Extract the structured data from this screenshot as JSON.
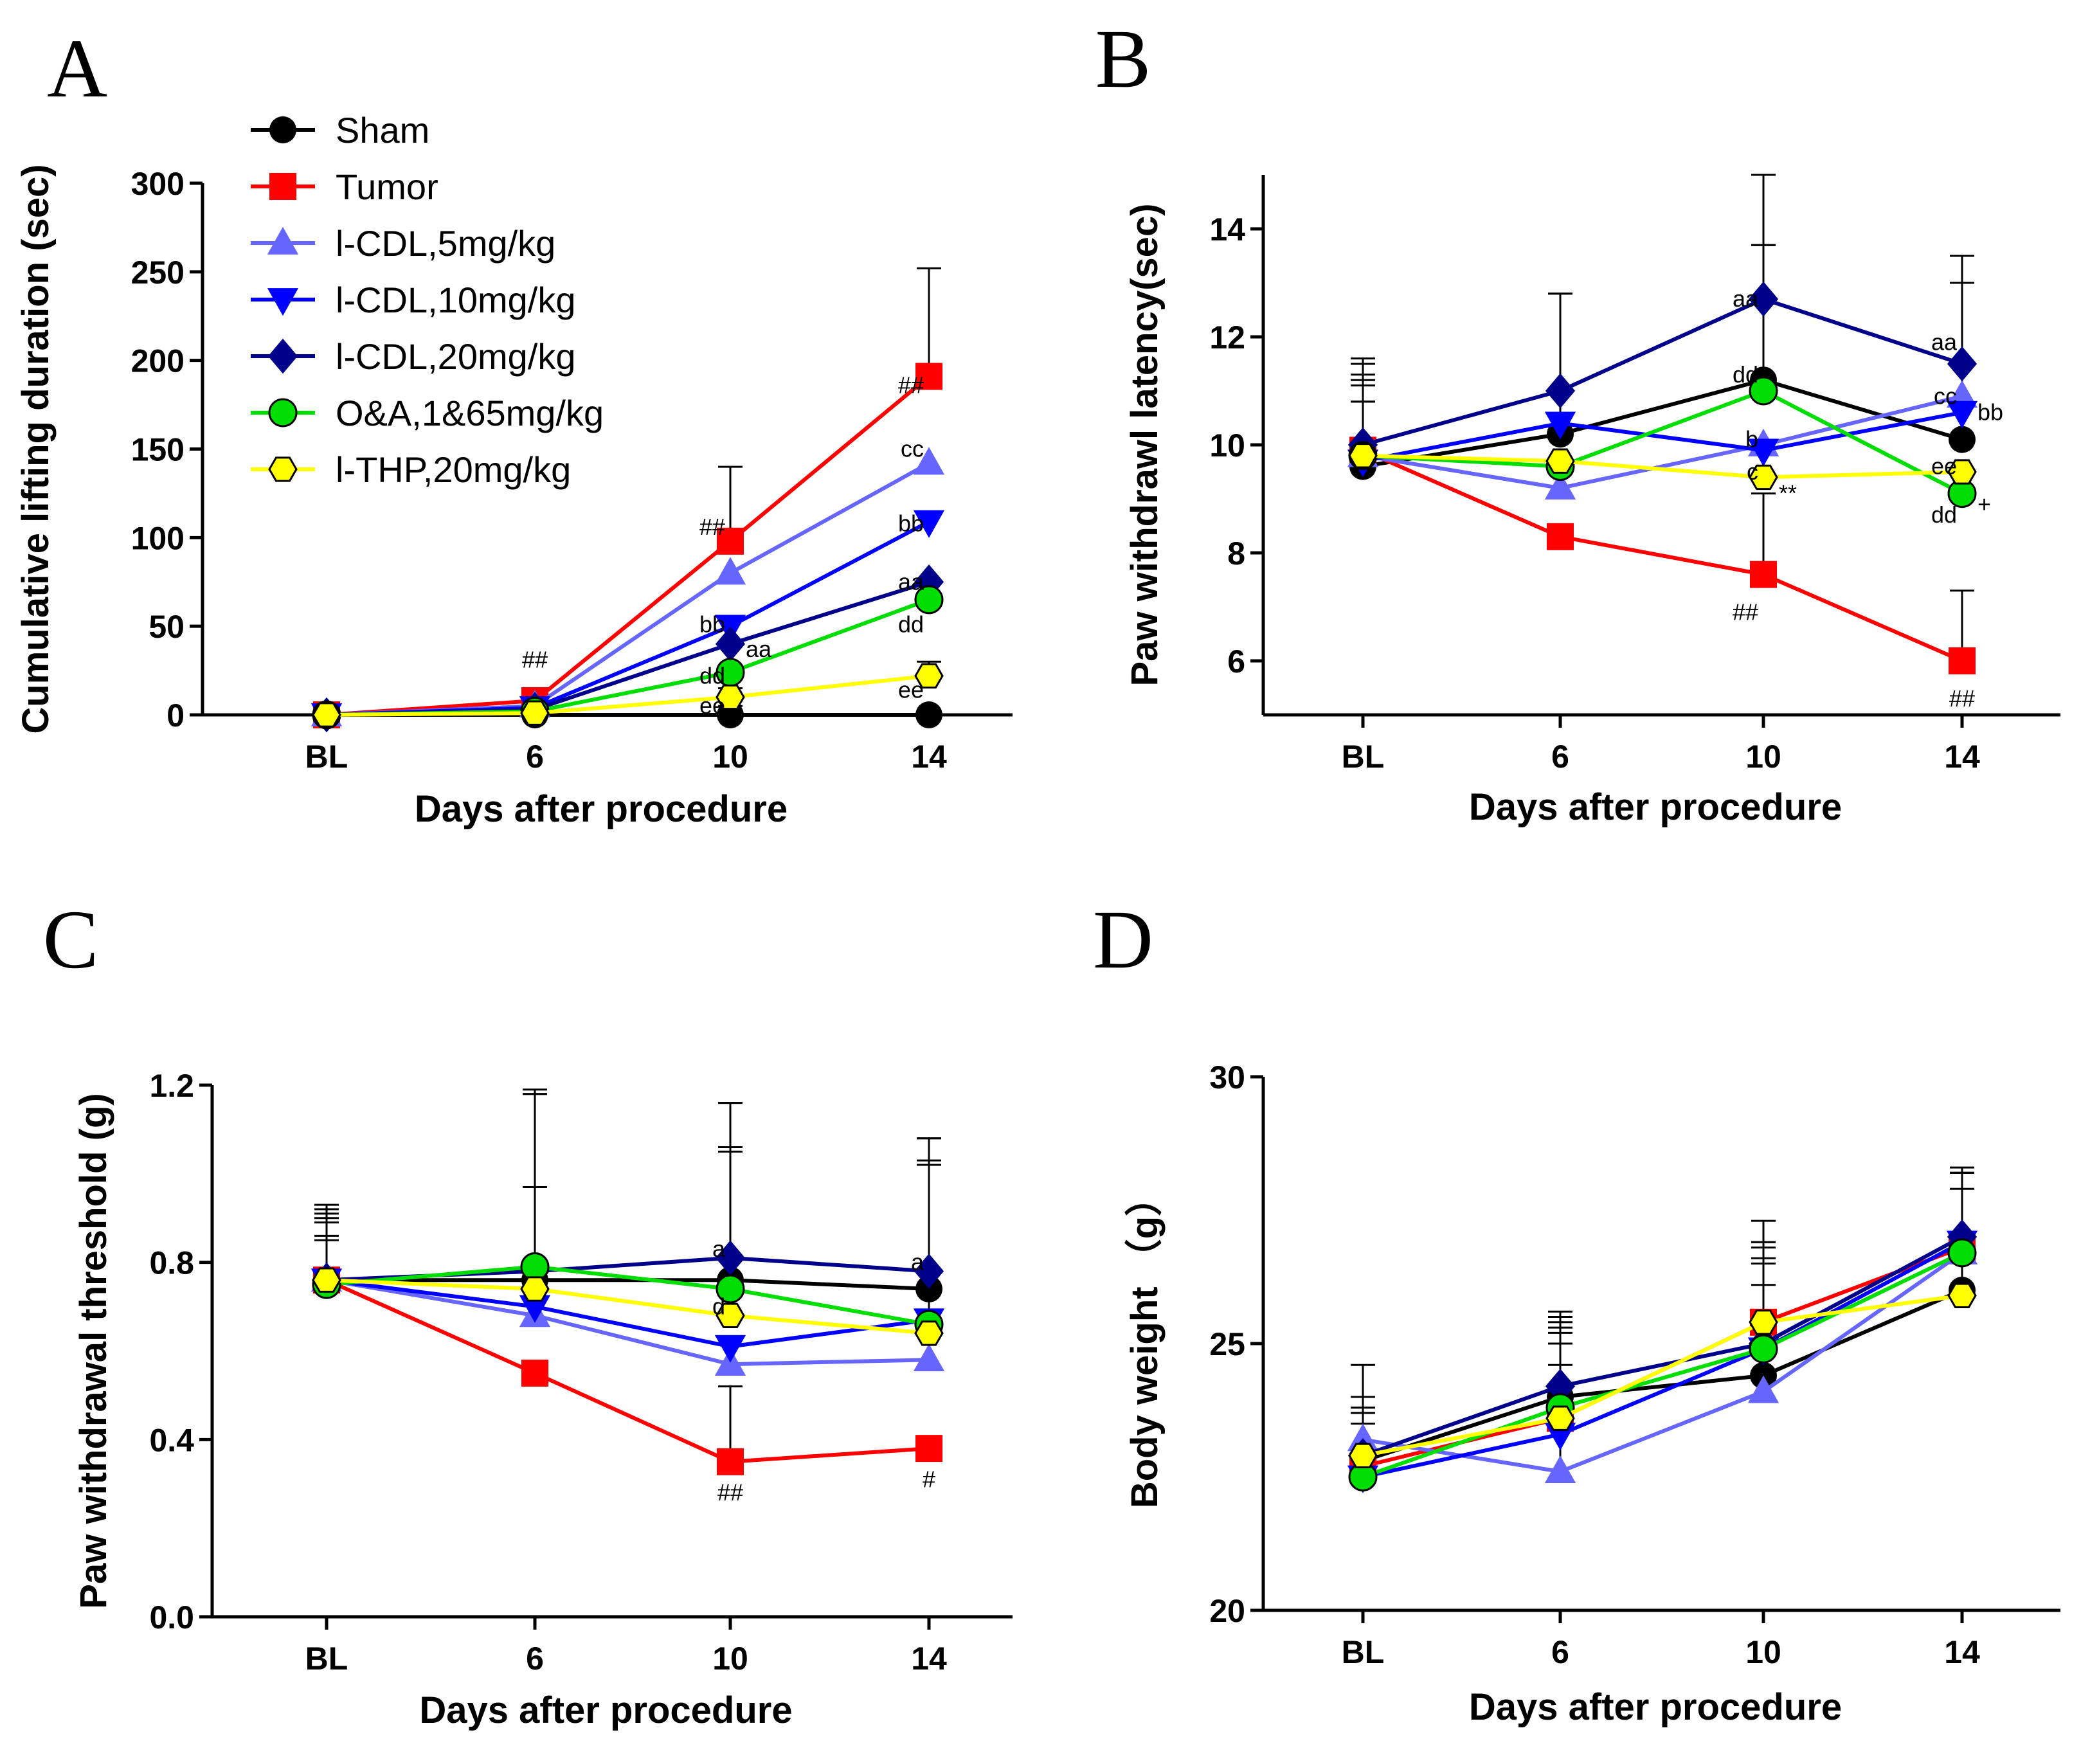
{
  "figure": {
    "background": "#ffffff"
  },
  "legend": [
    {
      "name": "Sham",
      "color": "#000000",
      "marker": "circle"
    },
    {
      "name": "Tumor",
      "color": "#ff0000",
      "marker": "square"
    },
    {
      "name": "l-CDL,5mg/kg",
      "color": "#6666ff",
      "marker": "triangle-up"
    },
    {
      "name": "l-CDL,10mg/kg",
      "color": "#0000ff",
      "marker": "triangle-down"
    },
    {
      "name": "l-CDL,20mg/kg",
      "color": "#00008b",
      "marker": "diamond"
    },
    {
      "name": "O&A,1&65mg/kg",
      "color": "#00dd00",
      "marker": "circle-outlined"
    },
    {
      "name": "l-THP,20mg/kg",
      "color": "#ffff00",
      "marker": "hexagon-outlined"
    }
  ],
  "chart_data": [
    {
      "type": "line",
      "letter": "A",
      "title": "",
      "xlabel": "Days after procedure",
      "ylabel": "Cumulative lifting duration (sec)",
      "categories": [
        "BL",
        "6",
        "10",
        "14"
      ],
      "ylim": [
        0,
        300
      ],
      "yticks": [
        0,
        50,
        100,
        150,
        200,
        250,
        300
      ],
      "ytick_labels": [
        "0",
        "50",
        "100",
        "150",
        "200",
        "250",
        "300"
      ],
      "series": [
        {
          "name": "Sham",
          "values": [
            0,
            0,
            0,
            0
          ],
          "err": [
            0,
            0,
            5,
            0
          ]
        },
        {
          "name": "Tumor",
          "values": [
            0,
            8,
            98,
            191
          ],
          "err": [
            0,
            3,
            42,
            61
          ]
        },
        {
          "name": "l-CDL,5mg/kg",
          "values": [
            0,
            5,
            80,
            142
          ],
          "err": [
            0,
            2,
            0,
            0
          ]
        },
        {
          "name": "l-CDL,10mg/kg",
          "values": [
            0,
            4,
            50,
            109
          ],
          "err": [
            0,
            0,
            0,
            0
          ]
        },
        {
          "name": "l-CDL,20mg/kg",
          "values": [
            0,
            3,
            40,
            75
          ],
          "err": [
            0,
            0,
            0,
            0
          ]
        },
        {
          "name": "O&A,1&65mg/kg",
          "values": [
            0,
            2,
            24,
            65
          ],
          "err": [
            0,
            0,
            0,
            0
          ]
        },
        {
          "name": "l-THP,20mg/kg",
          "values": [
            0,
            1,
            10,
            22
          ],
          "err": [
            0,
            0,
            5,
            8
          ]
        }
      ],
      "annotations": [
        {
          "text": "##",
          "cat": 1,
          "value": 31,
          "ha": "middle"
        },
        {
          "text": "##",
          "cat": 2,
          "value": 106,
          "ha": "end"
        },
        {
          "text": "##",
          "cat": 3,
          "value": 186,
          "ha": "end"
        },
        {
          "text": "cc",
          "cat": 3,
          "value": 150,
          "ha": "end"
        },
        {
          "text": "bb",
          "cat": 3,
          "value": 108,
          "ha": "end"
        },
        {
          "text": "aa",
          "cat": 3,
          "value": 75,
          "ha": "end"
        },
        {
          "text": "dd",
          "cat": 3,
          "value": 51,
          "ha": "end"
        },
        {
          "text": "ee",
          "cat": 3,
          "value": 14,
          "ha": "end"
        },
        {
          "text": "bb",
          "cat": 2,
          "value": 51,
          "ha": "end"
        },
        {
          "text": "aa",
          "cat": 2,
          "value": 37,
          "ha": "start"
        },
        {
          "text": "dd",
          "cat": 2,
          "value": 22,
          "ha": "end"
        },
        {
          "text": "ee",
          "cat": 2,
          "value": 5,
          "ha": "end"
        }
      ]
    },
    {
      "type": "line",
      "letter": "B",
      "title": "",
      "xlabel": "Days after procedure",
      "ylabel": "Paw withdrawl latency(sec)",
      "categories": [
        "BL",
        "6",
        "10",
        "14"
      ],
      "ylim": [
        5,
        15
      ],
      "yticks": [
        6,
        8,
        10,
        12,
        14
      ],
      "ytick_labels": [
        "6",
        "8",
        "10",
        "12",
        "14"
      ],
      "series": [
        {
          "name": "Sham",
          "values": [
            9.6,
            10.2,
            11.2,
            10.1
          ],
          "err": [
            1.9,
            2.6,
            2.5,
            3.4
          ]
        },
        {
          "name": "Tumor",
          "values": [
            9.9,
            8.3,
            7.6,
            6.0
          ],
          "err": [
            1.7,
            0,
            1.5,
            1.3
          ]
        },
        {
          "name": "l-CDL,5mg/kg",
          "values": [
            9.8,
            9.2,
            10.0,
            10.9
          ],
          "err": [
            1.5,
            0,
            0,
            0
          ]
        },
        {
          "name": "l-CDL,10mg/kg",
          "values": [
            9.7,
            10.4,
            9.9,
            10.6
          ],
          "err": [
            1.4,
            0,
            0,
            2.4
          ]
        },
        {
          "name": "l-CDL,20mg/kg",
          "values": [
            10.0,
            11.0,
            12.7,
            11.5
          ],
          "err": [
            1.2,
            1.8,
            2.3,
            2.0
          ]
        },
        {
          "name": "O&A,1&65mg/kg",
          "values": [
            9.8,
            9.6,
            11.0,
            9.1
          ],
          "err": [
            1.0,
            0,
            2.7,
            0
          ]
        },
        {
          "name": "l-THP,20mg/kg",
          "values": [
            9.8,
            9.7,
            9.4,
            9.5
          ],
          "err": [
            1.0,
            0,
            0,
            0
          ]
        }
      ],
      "annotations": [
        {
          "text": "aa",
          "cat": 2,
          "value": 12.7,
          "ha": "end"
        },
        {
          "text": "dd",
          "cat": 2,
          "value": 11.3,
          "ha": "end"
        },
        {
          "text": "b",
          "cat": 2,
          "value": 10.1,
          "ha": "end"
        },
        {
          "text": "c",
          "cat": 2,
          "value": 9.5,
          "ha": "end"
        },
        {
          "text": "**",
          "cat": 2,
          "value": 9.1,
          "ha": "start"
        },
        {
          "text": "##",
          "cat": 2,
          "value": 6.9,
          "ha": "end"
        },
        {
          "text": "aa",
          "cat": 3,
          "value": 11.9,
          "ha": "end"
        },
        {
          "text": "cc",
          "cat": 3,
          "value": 10.9,
          "ha": "end"
        },
        {
          "text": "bb",
          "cat": 3,
          "value": 10.6,
          "ha": "start"
        },
        {
          "text": "ee",
          "cat": 3,
          "value": 9.6,
          "ha": "end"
        },
        {
          "text": "dd",
          "cat": 3,
          "value": 8.7,
          "ha": "end"
        },
        {
          "text": "+",
          "cat": 3,
          "value": 8.9,
          "ha": "start"
        },
        {
          "text": "##",
          "cat": 3,
          "value": 5.3,
          "ha": "middle"
        }
      ]
    },
    {
      "type": "line",
      "letter": "C",
      "title": "",
      "xlabel": "Days after procedure",
      "ylabel": "Paw withdrawal threshold (g)",
      "categories": [
        "BL",
        "6",
        "10",
        "14"
      ],
      "ylim": [
        0,
        1.2
      ],
      "yticks": [
        0,
        0.4,
        0.8,
        1.2
      ],
      "ytick_labels": [
        "0.0",
        "0.4",
        "0.8",
        "1.2"
      ],
      "series": [
        {
          "name": "Sham",
          "values": [
            0.76,
            0.76,
            0.76,
            0.74
          ],
          "err": [
            0.17,
            0.43,
            0.4,
            0.34
          ]
        },
        {
          "name": "Tumor",
          "values": [
            0.76,
            0.55,
            0.35,
            0.38
          ],
          "err": [
            0.16,
            0,
            0.17,
            0
          ]
        },
        {
          "name": "l-CDL,5mg/kg",
          "values": [
            0.76,
            0.68,
            0.57,
            0.58
          ],
          "err": [
            0.15,
            0,
            0,
            0
          ]
        },
        {
          "name": "l-CDL,10mg/kg",
          "values": [
            0.76,
            0.7,
            0.61,
            0.67
          ],
          "err": [
            0.14,
            0,
            0,
            0
          ]
        },
        {
          "name": "l-CDL,20mg/kg",
          "values": [
            0.76,
            0.78,
            0.81,
            0.78
          ],
          "err": [
            0.13,
            0.4,
            0.35,
            0.3
          ]
        },
        {
          "name": "O&A,1&65mg/kg",
          "values": [
            0.75,
            0.79,
            0.74,
            0.66
          ],
          "err": [
            0.1,
            0.39,
            0.31,
            0.37
          ]
        },
        {
          "name": "l-THP,20mg/kg",
          "values": [
            0.76,
            0.74,
            0.68,
            0.64
          ],
          "err": [
            0.1,
            0.23,
            0.38,
            0.38
          ]
        }
      ],
      "annotations": [
        {
          "text": "a",
          "cat": 2,
          "value": 0.83,
          "ha": "end"
        },
        {
          "text": "d",
          "cat": 2,
          "value": 0.7,
          "ha": "end"
        },
        {
          "text": "##",
          "cat": 2,
          "value": 0.28,
          "ha": "middle"
        },
        {
          "text": "a",
          "cat": 3,
          "value": 0.8,
          "ha": "end"
        },
        {
          "text": "#",
          "cat": 3,
          "value": 0.31,
          "ha": "middle"
        }
      ]
    },
    {
      "type": "line",
      "letter": "D",
      "title": "",
      "xlabel": "Days after procedure",
      "ylabel": "Body weight （g）",
      "categories": [
        "BL",
        "6",
        "10",
        "14"
      ],
      "ylim": [
        20,
        30
      ],
      "yticks": [
        20,
        25,
        30
      ],
      "ytick_labels": [
        "20",
        "25",
        "30"
      ],
      "series": [
        {
          "name": "Sham",
          "values": [
            22.8,
            24.0,
            24.4,
            26.0
          ],
          "err": [
            0.9,
            1.2,
            1.7,
            2.2
          ]
        },
        {
          "name": "Tumor",
          "values": [
            22.7,
            23.6,
            25.4,
            26.8
          ],
          "err": [
            1.1,
            1.7,
            1.9,
            1.1
          ]
        },
        {
          "name": "l-CDL,5mg/kg",
          "values": [
            23.2,
            22.6,
            24.1,
            26.7
          ],
          "err": [
            1.4,
            2.8,
            2.7,
            1.5
          ]
        },
        {
          "name": "l-CDL,10mg/kg",
          "values": [
            22.5,
            23.3,
            24.9,
            26.9
          ],
          "err": [
            1.3,
            2.2,
            1.6,
            1.3
          ]
        },
        {
          "name": "l-CDL,20mg/kg",
          "values": [
            22.9,
            24.2,
            25.0,
            27.0
          ],
          "err": [
            1.1,
            1.4,
            1.9,
            1.2
          ]
        },
        {
          "name": "O&A,1&65mg/kg",
          "values": [
            22.5,
            23.8,
            24.9,
            26.7
          ],
          "err": [
            1.0,
            1.2,
            1.7,
            1.6
          ]
        },
        {
          "name": "l-THP,20mg/kg",
          "values": [
            22.9,
            23.6,
            25.4,
            25.9
          ],
          "err": [
            0.8,
            1.0,
            1.5,
            1.0
          ]
        }
      ],
      "annotations": []
    }
  ]
}
